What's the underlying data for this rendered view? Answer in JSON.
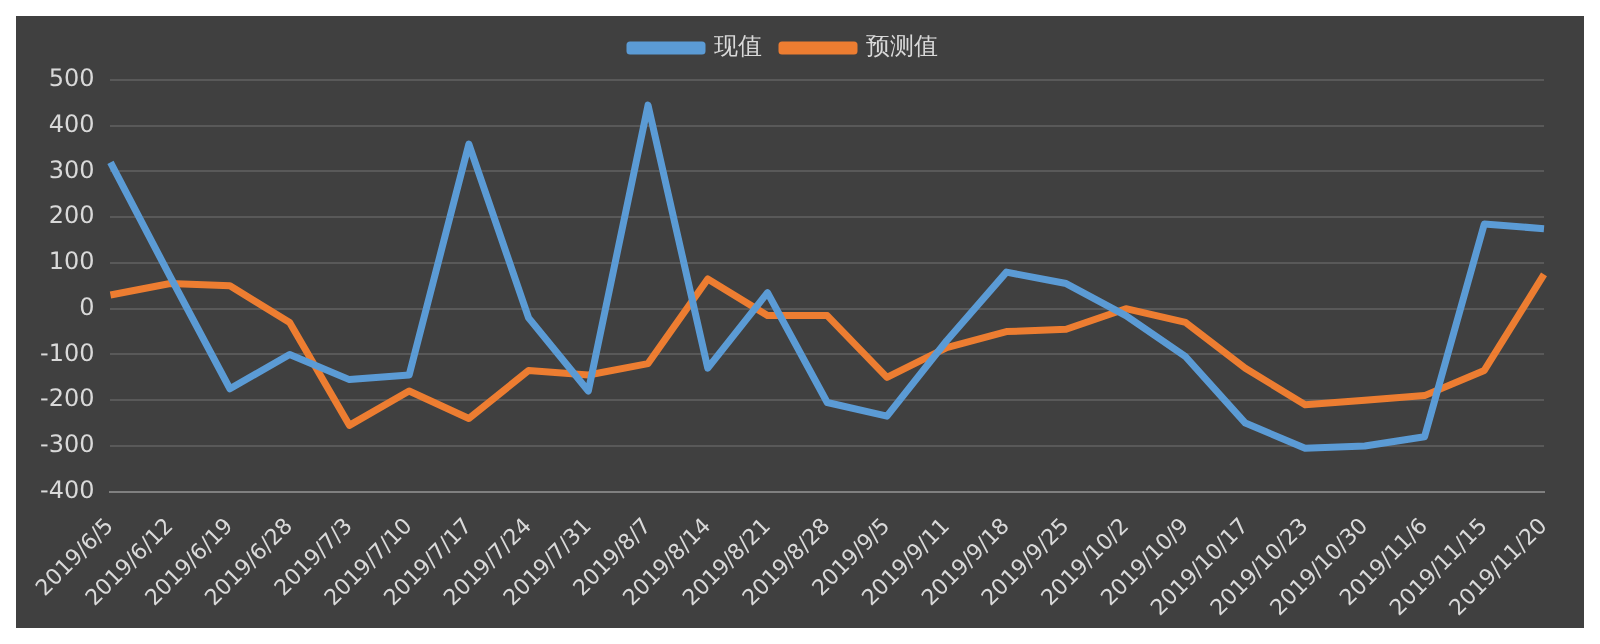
{
  "chart_data": {
    "type": "line",
    "categories": [
      "2019/6/5",
      "2019/6/12",
      "2019/6/19",
      "2019/6/28",
      "2019/7/3",
      "2019/7/10",
      "2019/7/17",
      "2019/7/24",
      "2019/7/31",
      "2019/8/7",
      "2019/8/14",
      "2019/8/21",
      "2019/8/28",
      "2019/9/5",
      "2019/9/11",
      "2019/9/18",
      "2019/9/25",
      "2019/10/2",
      "2019/10/9",
      "2019/10/17",
      "2019/10/23",
      "2019/10/30",
      "2019/11/6",
      "2019/11/15",
      "2019/11/20"
    ],
    "series": [
      {
        "name": "现值",
        "color": "#5b9bd5",
        "values": [
          320,
          70,
          -175,
          -100,
          -155,
          -145,
          360,
          -20,
          -180,
          445,
          -130,
          35,
          -205,
          -235,
          -70,
          80,
          55,
          -15,
          -105,
          -250,
          -305,
          -300,
          -280,
          185,
          175
        ]
      },
      {
        "name": "预测值",
        "color": "#ed7d31",
        "values": [
          30,
          55,
          50,
          -30,
          -255,
          -180,
          -240,
          -135,
          -145,
          -120,
          65,
          -15,
          -15,
          -150,
          -85,
          -50,
          -45,
          0,
          -30,
          -130,
          -210,
          -200,
          -190,
          -135,
          75
        ]
      }
    ],
    "ylim": [
      -400,
      500
    ],
    "yticks": [
      -400,
      -300,
      -200,
      -100,
      0,
      100,
      200,
      300,
      400,
      500
    ],
    "grid": "y",
    "legend": "top",
    "marker": "none",
    "line_style": "solid"
  }
}
